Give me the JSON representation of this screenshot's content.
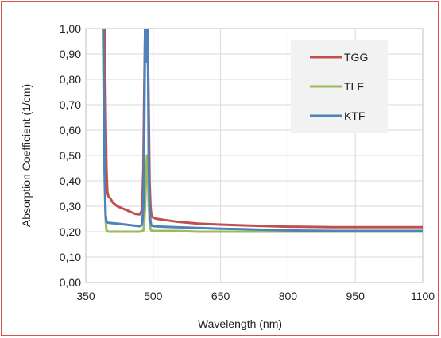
{
  "chart_data": {
    "type": "line",
    "xlabel": "Wavelength (nm)",
    "ylabel": "Absorption Coefficient (1/cm)",
    "xlim": [
      350,
      1100
    ],
    "ylim": [
      0,
      1.0
    ],
    "x_ticks": [
      "350",
      "500",
      "650",
      "800",
      "950",
      "1100"
    ],
    "y_ticks": [
      "0,00",
      "0,10",
      "0,20",
      "0,30",
      "0,40",
      "0,50",
      "0,60",
      "0,70",
      "0,80",
      "0,90",
      "1,00"
    ],
    "grid": true,
    "legend_position": "top-right",
    "series": [
      {
        "name": "TGG",
        "color": "#c0504d",
        "x": [
          392,
          394,
          396,
          398,
          400,
          405,
          410,
          420,
          440,
          460,
          470,
          474,
          476,
          478,
          480,
          482,
          484,
          486,
          488,
          490,
          492,
          494,
          496,
          500,
          510,
          550,
          600,
          650,
          700,
          800,
          900,
          1000,
          1100
        ],
        "y": [
          1.0,
          0.7,
          0.45,
          0.36,
          0.34,
          0.33,
          0.315,
          0.3,
          0.285,
          0.27,
          0.268,
          0.28,
          0.32,
          0.45,
          0.75,
          1.0,
          1.0,
          1.0,
          0.95,
          0.7,
          0.4,
          0.3,
          0.265,
          0.255,
          0.25,
          0.24,
          0.232,
          0.228,
          0.225,
          0.22,
          0.218,
          0.218,
          0.218
        ]
      },
      {
        "name": "TLF",
        "color": "#9bbb59",
        "x": [
          388,
          390,
          392,
          394,
          396,
          400,
          420,
          450,
          470,
          478,
          480,
          482,
          484,
          486,
          488,
          490,
          492,
          494,
          496,
          500,
          550,
          600,
          650,
          700,
          800,
          900,
          1000,
          1100
        ],
        "y": [
          1.0,
          0.7,
          0.4,
          0.25,
          0.205,
          0.2,
          0.2,
          0.2,
          0.2,
          0.205,
          0.23,
          0.3,
          0.42,
          0.5,
          0.45,
          0.32,
          0.24,
          0.21,
          0.205,
          0.203,
          0.203,
          0.2,
          0.2,
          0.2,
          0.2,
          0.2,
          0.2,
          0.2
        ]
      },
      {
        "name": "KTF",
        "color": "#4f81bd",
        "x": [
          389,
          390,
          392,
          394,
          396,
          400,
          420,
          450,
          470,
          474,
          476,
          478,
          480,
          482,
          484,
          486,
          488,
          490,
          492,
          494,
          496,
          500,
          520,
          550,
          600,
          650,
          700,
          800,
          900,
          1000,
          1100
        ],
        "y": [
          1.0,
          0.75,
          0.45,
          0.27,
          0.24,
          0.235,
          0.232,
          0.226,
          0.222,
          0.225,
          0.24,
          0.3,
          0.55,
          1.0,
          1.0,
          0.87,
          1.0,
          0.5,
          0.3,
          0.24,
          0.225,
          0.222,
          0.22,
          0.218,
          0.215,
          0.212,
          0.21,
          0.205,
          0.203,
          0.203,
          0.203
        ]
      }
    ]
  }
}
